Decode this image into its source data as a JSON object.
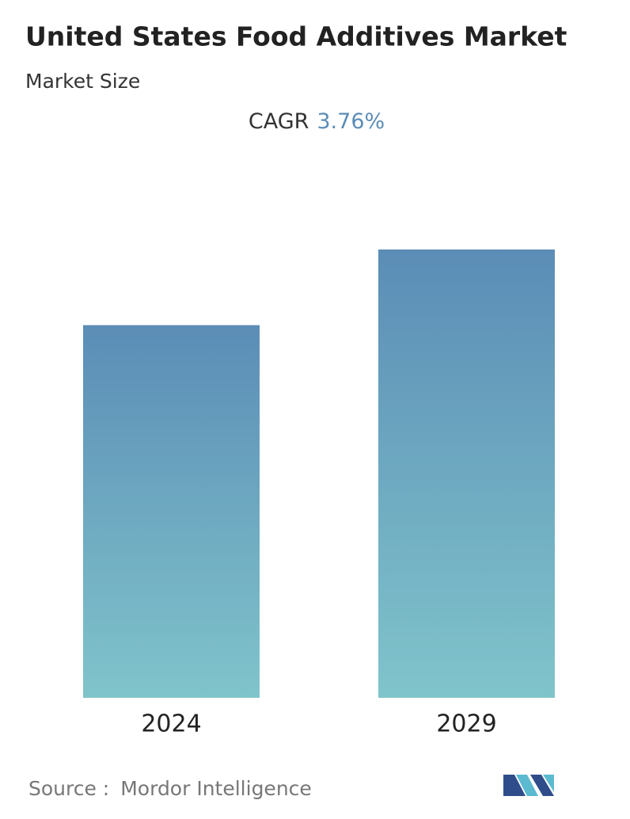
{
  "chart_data": {
    "type": "bar",
    "title": "United States Food Additives Market",
    "subtitle": "Market Size",
    "cagr_label": "CAGR",
    "cagr_value": "3.76%",
    "categories": [
      "2024",
      "2029"
    ],
    "values": [
      100,
      120.3
    ],
    "color_top": "#5b8db6",
    "color_bottom": "#80c4cb",
    "source_label": "Source :",
    "source": "Mordor Intelligence"
  }
}
